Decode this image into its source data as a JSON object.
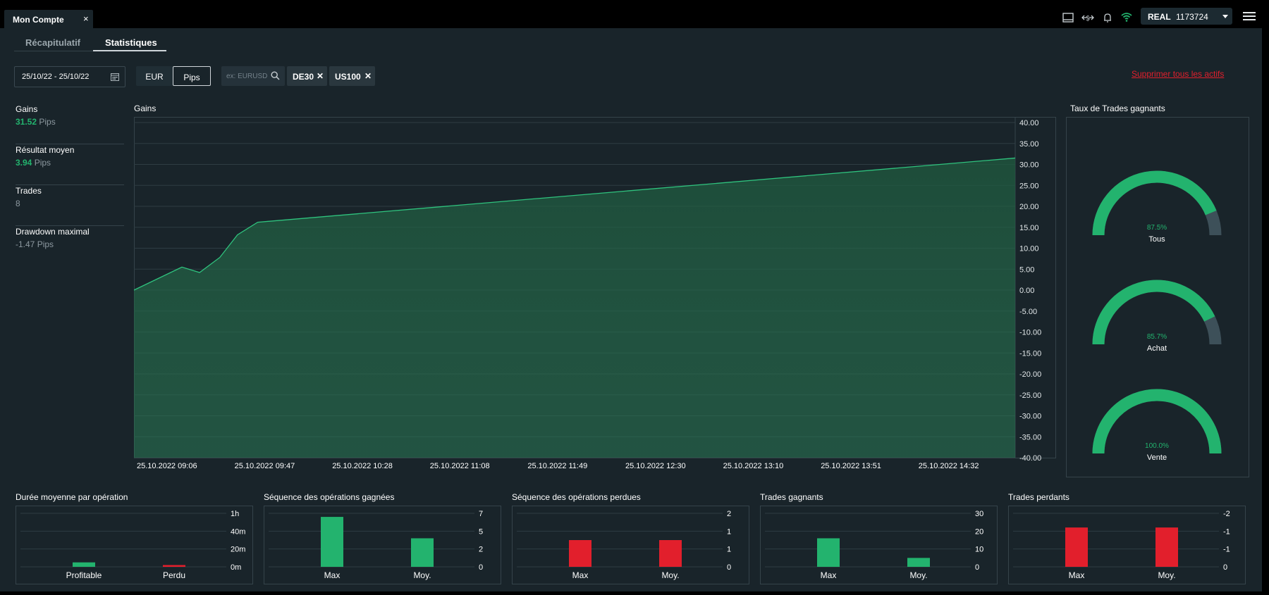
{
  "tab": {
    "title": "Mon Compte",
    "close": "×"
  },
  "account": {
    "type": "REAL",
    "number": "1173724"
  },
  "subtabs": [
    {
      "label": "Récapitulatif"
    },
    {
      "label": "Statistiques"
    }
  ],
  "filters": {
    "date_range": "25/10/22 - 25/10/22",
    "currency": "EUR",
    "unit": "Pips",
    "search_placeholder": "ex: EURUSD",
    "chips": [
      {
        "label": "DE30"
      },
      {
        "label": "US100"
      }
    ],
    "delete_all": "Supprimer tous les actifs"
  },
  "stats": [
    {
      "label": "Gains",
      "value": "31.52",
      "unit": "Pips",
      "tone": "green"
    },
    {
      "label": "Résultat moyen",
      "value": "3.94",
      "unit": "Pips",
      "tone": "green"
    },
    {
      "label": "Trades",
      "value": "8",
      "unit": "",
      "tone": "grey"
    },
    {
      "label": "Drawdown maximal",
      "value": "-1.47",
      "unit": "Pips",
      "tone": "grey"
    }
  ],
  "colors": {
    "green": "#23b36e",
    "red": "#e21f2c",
    "grey_track": "#3d5059",
    "grid": "#2e3c43"
  },
  "chart_data": [
    {
      "type": "area",
      "title": "Gains",
      "x": [
        "25.10.2022 09:06",
        "25.10.2022 09:25",
        "25.10.2022 09:32",
        "25.10.2022 09:40",
        "25.10.2022 09:47",
        "25.10.2022 09:55",
        "25.10.2022 14:55"
      ],
      "values": [
        0,
        5.5,
        4.2,
        7.8,
        13.2,
        16.2,
        31.52
      ],
      "x_ticks": [
        "25.10.2022 09:06",
        "25.10.2022 09:47",
        "25.10.2022 10:28",
        "25.10.2022 11:08",
        "25.10.2022 11:49",
        "25.10.2022 12:30",
        "25.10.2022 13:10",
        "25.10.2022 13:51",
        "25.10.2022 14:32"
      ],
      "y_ticks": [
        "40.00",
        "35.00",
        "30.00",
        "25.00",
        "20.00",
        "15.00",
        "10.00",
        "5.00",
        "0.00",
        "-5.00",
        "-10.00",
        "-15.00",
        "-20.00",
        "-25.00",
        "-30.00",
        "-35.00",
        "-40.00"
      ],
      "ylim": [
        -40,
        40
      ],
      "grid": true
    },
    {
      "type": "gauge",
      "title": "Taux de Trades gagnants",
      "items": [
        {
          "label": "Tous",
          "value": 87.5,
          "text": "87.5%"
        },
        {
          "label": "Achat",
          "value": 85.7,
          "text": "85.7%"
        },
        {
          "label": "Vente",
          "value": 100.0,
          "text": "100.0%"
        }
      ]
    },
    {
      "type": "bar",
      "title": "Durée moyenne par opération",
      "categories": [
        "Profitable",
        "Perdu"
      ],
      "values": [
        5,
        2
      ],
      "colors": [
        "#23b36e",
        "#e21f2c"
      ],
      "y_ticks": [
        "1h",
        "40m",
        "20m",
        "0m"
      ],
      "ylim": [
        0,
        60
      ]
    },
    {
      "type": "bar",
      "title": "Séquence des opérations gagnées",
      "categories": [
        "Max",
        "Moy."
      ],
      "values": [
        7,
        4
      ],
      "colors": [
        "#23b36e",
        "#23b36e"
      ],
      "y_ticks": [
        "7",
        "5",
        "2",
        "0"
      ],
      "ylim": [
        0,
        7.5
      ]
    },
    {
      "type": "bar",
      "title": "Séquence des opérations perdues",
      "categories": [
        "Max",
        "Moy."
      ],
      "values": [
        1,
        1
      ],
      "colors": [
        "#e21f2c",
        "#e21f2c"
      ],
      "y_ticks": [
        "2",
        "1",
        "1",
        "0"
      ],
      "ylim": [
        0,
        2
      ]
    },
    {
      "type": "bar",
      "title": "Trades gagnants",
      "categories": [
        "Max",
        "Moy."
      ],
      "values": [
        16,
        5
      ],
      "colors": [
        "#23b36e",
        "#23b36e"
      ],
      "y_ticks": [
        "30",
        "20",
        "10",
        "0"
      ],
      "ylim": [
        0,
        30
      ]
    },
    {
      "type": "bar",
      "title": "Trades perdants",
      "categories": [
        "Max",
        "Moy."
      ],
      "values": [
        1.47,
        1.47
      ],
      "colors": [
        "#e21f2c",
        "#e21f2c"
      ],
      "y_ticks": [
        "-2",
        "-1",
        "-1",
        "0"
      ],
      "ylim": [
        0,
        2
      ]
    }
  ]
}
